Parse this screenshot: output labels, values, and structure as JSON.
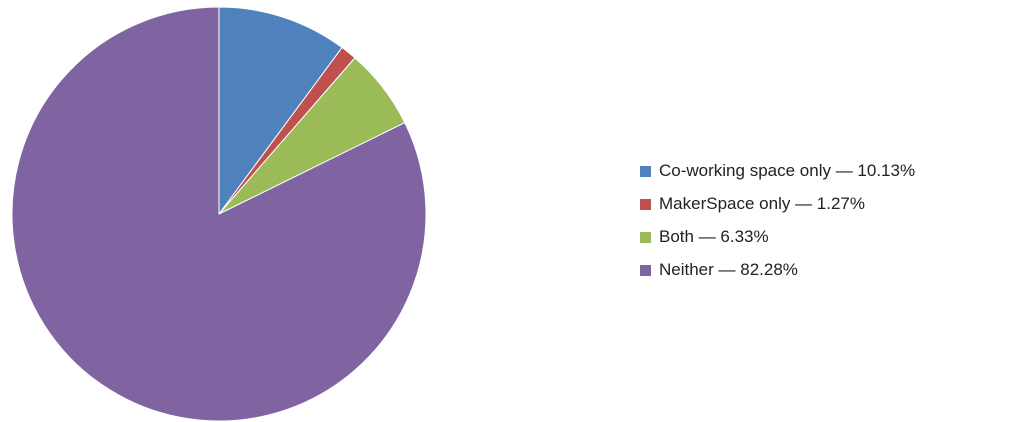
{
  "chart_data": {
    "type": "pie",
    "start_angle_deg": 0,
    "direction": "clockwise",
    "legend_position": "right",
    "series": [
      {
        "label": "Co-working space only — 10.13%",
        "value": 10.13,
        "color": "#4F81BD"
      },
      {
        "label": "MakerSpace only — 1.27%",
        "value": 1.27,
        "color": "#C0504D"
      },
      {
        "label": "Both — 6.33%",
        "value": 6.33,
        "color": "#9BBB59"
      },
      {
        "label": "Neither — 82.28%",
        "value": 82.28,
        "color": "#8064A2"
      }
    ]
  }
}
